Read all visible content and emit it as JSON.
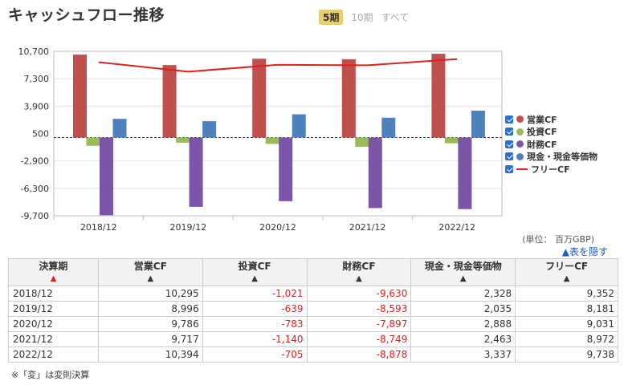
{
  "title": "キャッシュフロー推移",
  "period_tabs": [
    {
      "label": "5期",
      "active": true
    },
    {
      "label": "10期",
      "active": false
    },
    {
      "label": "すべて",
      "active": false
    }
  ],
  "chart_data": {
    "type": "bar",
    "categories": [
      "2018/12",
      "2019/12",
      "2020/12",
      "2021/12",
      "2022/12"
    ],
    "y_ticks": [
      "10,700",
      "7,300",
      "3,900",
      "500",
      "-2,900",
      "-6,300",
      "-9,700"
    ],
    "ylim": [
      -9700,
      10700
    ],
    "grid": true,
    "legend_position": "right",
    "series": [
      {
        "name": "営業CF",
        "type": "bar",
        "color": "#c0504d",
        "values": [
          10295,
          8996,
          9786,
          9717,
          10394
        ]
      },
      {
        "name": "投資CF",
        "type": "bar",
        "color": "#9bbb59",
        "values": [
          -1021,
          -639,
          -783,
          -1140,
          -705
        ]
      },
      {
        "name": "財務CF",
        "type": "bar",
        "color": "#7b56a8",
        "values": [
          -9630,
          -8593,
          -7897,
          -8749,
          -8878
        ]
      },
      {
        "name": "現金・現金等価物",
        "type": "bar",
        "color": "#4f81bd",
        "values": [
          2328,
          2035,
          2888,
          2463,
          3337
        ]
      },
      {
        "name": "フリーCF",
        "type": "line",
        "color": "#e02020",
        "values": [
          9352,
          8181,
          9031,
          8972,
          9738
        ]
      }
    ]
  },
  "unit_label": "(単位： 百万GBP)",
  "hide_table_label": "▲表を隠す",
  "table": {
    "headers": [
      "決算期",
      "営業CF",
      "投資CF",
      "財務CF",
      "現金・現金等価物",
      "フリーCF"
    ],
    "sort_arrow": "▲",
    "rows": [
      [
        "2018/12",
        "10,295",
        "-1,021",
        "-9,630",
        "2,328",
        "9,352"
      ],
      [
        "2019/12",
        "8,996",
        "-639",
        "-8,593",
        "2,035",
        "8,181"
      ],
      [
        "2020/12",
        "9,786",
        "-783",
        "-7,897",
        "2,888",
        "9,031"
      ],
      [
        "2021/12",
        "9,717",
        "-1,140",
        "-8,749",
        "2,463",
        "8,972"
      ],
      [
        "2022/12",
        "10,394",
        "-705",
        "-8,878",
        "3,337",
        "9,738"
      ]
    ]
  },
  "note": "※「変」は変則決算"
}
